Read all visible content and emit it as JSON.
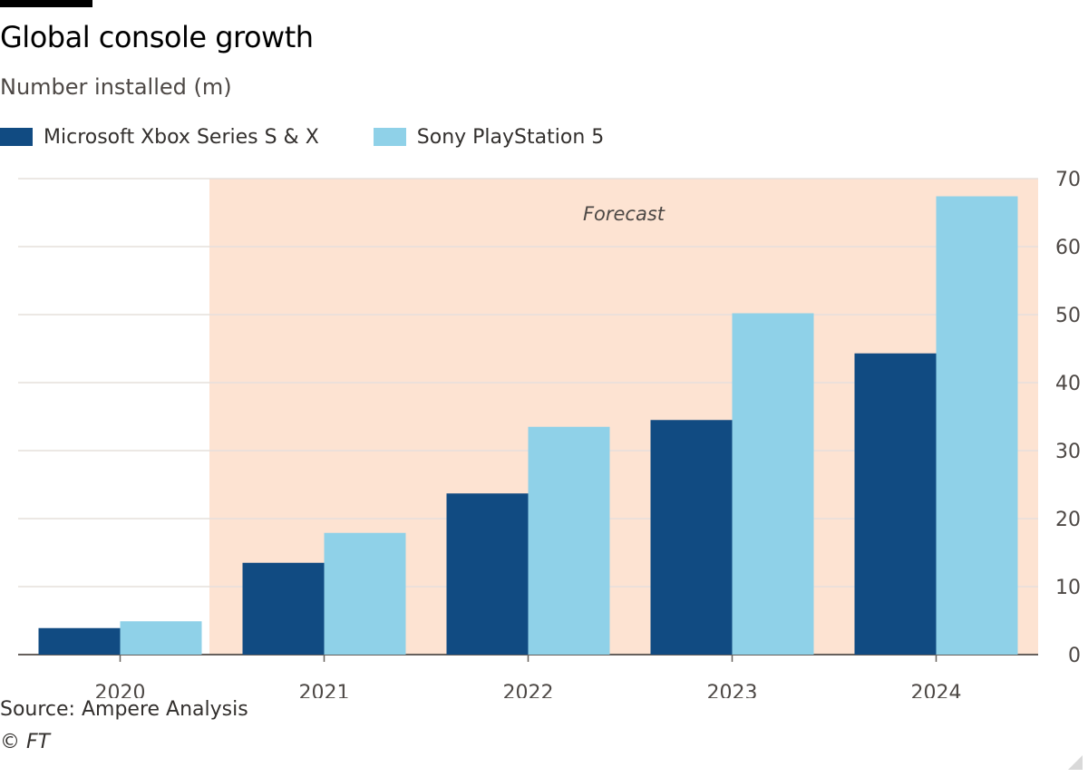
{
  "header": {
    "title": "Global console growth",
    "subtitle": "Number installed (m)"
  },
  "legend": [
    {
      "name": "Microsoft Xbox Series S & X",
      "color": "#114b82"
    },
    {
      "name": "Sony PlayStation 5",
      "color": "#8fd1e8"
    }
  ],
  "footer": {
    "source": "Source: Ampere Analysis",
    "credit": "© FT"
  },
  "chart_data": {
    "type": "bar",
    "title": "Global console growth",
    "subtitle": "Number installed (m)",
    "categories": [
      "2020",
      "2021",
      "2022",
      "2023",
      "2024"
    ],
    "series": [
      {
        "name": "Microsoft Xbox Series S & X",
        "values": [
          3.9,
          13.5,
          23.7,
          34.5,
          44.3
        ],
        "color": "#114b82"
      },
      {
        "name": "Sony PlayStation 5",
        "values": [
          4.9,
          17.9,
          33.5,
          50.2,
          67.4
        ],
        "color": "#8fd1e8"
      }
    ],
    "ylim": [
      0,
      70
    ],
    "yticks": [
      0,
      10,
      20,
      30,
      40,
      50,
      60,
      70
    ],
    "y_axis_position": "right",
    "grid": true,
    "legend_position": "top-left",
    "forecast": {
      "label": "Forecast",
      "from_category": "2021",
      "to_category": "2024",
      "color": "#fde3d2"
    }
  }
}
